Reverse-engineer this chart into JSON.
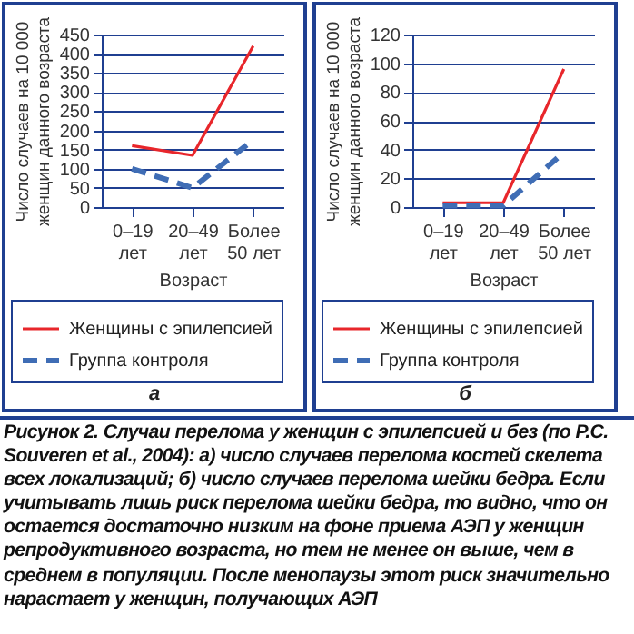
{
  "chart_data": [
    {
      "type": "line",
      "xlabel": "Возраст",
      "ylabel": "Число случаев на 10 000 женщин данного возраста",
      "categories": [
        "0–19 лет",
        "20–49 лет",
        "Более 50 лет"
      ],
      "series": [
        {
          "name": "Женщины с эпилепсией",
          "color": "#e8262b",
          "line_style": "solid",
          "values": [
            160,
            135,
            420
          ]
        },
        {
          "name": "Группа контроля",
          "color": "#3f6db5",
          "line_style": "dashed",
          "values": [
            100,
            50,
            175
          ]
        }
      ],
      "ylim": [
        0,
        450
      ],
      "yticks": [
        0,
        50,
        100,
        150,
        200,
        250,
        300,
        350,
        400,
        450
      ],
      "grid": "y",
      "legend": "bottom",
      "annotations": [
        "а",
        "Рисунок 2. Случаи перелома у женщин с эпилепсией и без (по P.C. Souveren et al., 2004): а) число случаев перелома костей скелета всех локализаций; б) число случаев перелома шейки бедра. Если учитывать лишь риск перелома шейки бедра, то видно, что он остается достаточно низким на фоне приема АЭП у женщин репродуктивного возраста, но тем не менее он выше, чем в среднем в популяции. После менопаузы этот риск значительно нарастает у женщин, получающих АЭП"
      ]
    },
    {
      "type": "line",
      "xlabel": "Возраст",
      "ylabel": "Число случаев на 10 000 женщин данного возраста",
      "categories": [
        "0–19 лет",
        "20–49 лет",
        "Более 50 лет"
      ],
      "series": [
        {
          "name": "Женщины с эпилепсией",
          "color": "#e8262b",
          "line_style": "solid",
          "values": [
            3,
            3,
            96
          ]
        },
        {
          "name": "Группа контроля",
          "color": "#3f6db5",
          "line_style": "dashed",
          "values": [
            1,
            1,
            38
          ]
        }
      ],
      "ylim": [
        0,
        120
      ],
      "yticks": [
        0,
        20,
        40,
        60,
        80,
        100,
        120
      ],
      "grid": "y",
      "legend": "bottom",
      "annotations": [
        "б"
      ]
    }
  ]
}
